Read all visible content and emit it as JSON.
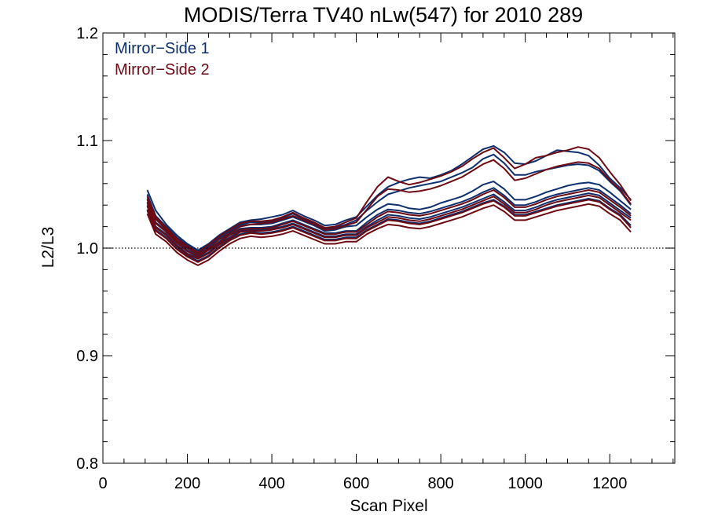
{
  "chart_data": {
    "type": "line",
    "title": "MODIS/Terra TV40 nLw(547) for 2010 289",
    "xlabel": "Scan Pixel",
    "ylabel": "L2/L3",
    "xlim": [
      0,
      1354
    ],
    "ylim": [
      0.8,
      1.2
    ],
    "x_ticks": [
      0,
      200,
      400,
      600,
      800,
      1000,
      1200
    ],
    "x_tick_labels": [
      "0",
      "200",
      "400",
      "600",
      "800",
      "1000",
      "1200"
    ],
    "y_ticks": [
      0.8,
      0.9,
      1.0,
      1.1,
      1.2
    ],
    "y_tick_labels": [
      "0.8",
      "0.9",
      "1.0",
      "1.1",
      "1.2"
    ],
    "reference_line": {
      "y": 1.0,
      "style": "dotted"
    },
    "grid": false,
    "legend_position": "top-left",
    "legend": [
      {
        "label": "Mirror−Side 1",
        "color": "#0d2f6e"
      },
      {
        "label": "Mirror−Side 2",
        "color": "#6e0a12"
      }
    ],
    "x": [
      105,
      125,
      150,
      175,
      200,
      225,
      250,
      275,
      300,
      325,
      350,
      375,
      400,
      425,
      450,
      475,
      500,
      525,
      550,
      575,
      600,
      625,
      650,
      675,
      700,
      725,
      750,
      775,
      800,
      825,
      850,
      875,
      900,
      925,
      950,
      975,
      1000,
      1025,
      1050,
      1075,
      1100,
      1125,
      1150,
      1175,
      1200,
      1225,
      1250
    ],
    "series": [
      {
        "mirror_side": 1,
        "values": [
          1.054,
          1.035,
          1.022,
          1.012,
          1.004,
          0.998,
          1.004,
          1.012,
          1.018,
          1.024,
          1.026,
          1.027,
          1.029,
          1.031,
          1.035,
          1.03,
          1.026,
          1.021,
          1.022,
          1.026,
          1.029,
          1.039,
          1.049,
          1.057,
          1.061,
          1.064,
          1.066,
          1.065,
          1.068,
          1.072,
          1.078,
          1.085,
          1.092,
          1.095,
          1.089,
          1.079,
          1.078,
          1.081,
          1.086,
          1.091,
          1.09,
          1.089,
          1.086,
          1.077,
          1.065,
          1.056,
          1.045
        ]
      },
      {
        "mirror_side": 1,
        "values": [
          1.05,
          1.03,
          1.02,
          1.01,
          1.003,
          0.997,
          1.002,
          1.01,
          1.016,
          1.022,
          1.024,
          1.024,
          1.025,
          1.028,
          1.032,
          1.027,
          1.023,
          1.018,
          1.019,
          1.022,
          1.026,
          1.035,
          1.043,
          1.05,
          1.053,
          1.056,
          1.058,
          1.06,
          1.062,
          1.066,
          1.07,
          1.075,
          1.083,
          1.087,
          1.079,
          1.068,
          1.068,
          1.071,
          1.073,
          1.075,
          1.077,
          1.078,
          1.077,
          1.072,
          1.062,
          1.053,
          1.04
        ]
      },
      {
        "mirror_side": 1,
        "values": [
          1.046,
          1.028,
          1.018,
          1.009,
          1.001,
          0.995,
          1.001,
          1.009,
          1.015,
          1.021,
          1.022,
          1.022,
          1.023,
          1.026,
          1.029,
          1.025,
          1.021,
          1.016,
          1.017,
          1.02,
          1.021,
          1.029,
          1.036,
          1.041,
          1.04,
          1.037,
          1.036,
          1.038,
          1.042,
          1.045,
          1.048,
          1.053,
          1.059,
          1.062,
          1.055,
          1.045,
          1.045,
          1.048,
          1.052,
          1.055,
          1.058,
          1.06,
          1.061,
          1.059,
          1.052,
          1.044,
          1.036
        ]
      },
      {
        "mirror_side": 1,
        "values": [
          1.043,
          1.024,
          1.016,
          1.006,
          0.998,
          0.993,
          0.999,
          1.006,
          1.013,
          1.018,
          1.019,
          1.019,
          1.02,
          1.023,
          1.026,
          1.022,
          1.018,
          1.014,
          1.014,
          1.016,
          1.016,
          1.024,
          1.031,
          1.036,
          1.035,
          1.033,
          1.032,
          1.034,
          1.037,
          1.04,
          1.043,
          1.047,
          1.052,
          1.056,
          1.049,
          1.04,
          1.04,
          1.043,
          1.047,
          1.05,
          1.052,
          1.054,
          1.056,
          1.054,
          1.047,
          1.04,
          1.032
        ]
      },
      {
        "mirror_side": 1,
        "values": [
          1.04,
          1.02,
          1.013,
          1.003,
          0.995,
          0.991,
          0.996,
          1.004,
          1.01,
          1.016,
          1.017,
          1.017,
          1.018,
          1.02,
          1.023,
          1.019,
          1.015,
          1.011,
          1.011,
          1.013,
          1.013,
          1.02,
          1.026,
          1.031,
          1.03,
          1.028,
          1.027,
          1.029,
          1.032,
          1.035,
          1.038,
          1.042,
          1.046,
          1.05,
          1.043,
          1.035,
          1.035,
          1.038,
          1.042,
          1.045,
          1.047,
          1.049,
          1.051,
          1.049,
          1.042,
          1.035,
          1.028
        ]
      },
      {
        "mirror_side": 1,
        "values": [
          1.036,
          1.017,
          1.01,
          1.0,
          0.993,
          0.988,
          0.993,
          1.001,
          1.008,
          1.013,
          1.015,
          1.014,
          1.015,
          1.017,
          1.02,
          1.016,
          1.012,
          1.008,
          1.008,
          1.01,
          1.01,
          1.017,
          1.022,
          1.027,
          1.026,
          1.024,
          1.023,
          1.025,
          1.028,
          1.031,
          1.034,
          1.038,
          1.042,
          1.045,
          1.039,
          1.031,
          1.031,
          1.034,
          1.037,
          1.04,
          1.042,
          1.044,
          1.046,
          1.044,
          1.037,
          1.031,
          1.021
        ]
      },
      {
        "mirror_side": 2,
        "values": [
          1.048,
          1.029,
          1.019,
          1.009,
          1.002,
          0.996,
          1.003,
          1.011,
          1.017,
          1.023,
          1.025,
          1.025,
          1.026,
          1.029,
          1.033,
          1.028,
          1.024,
          1.019,
          1.02,
          1.024,
          1.028,
          1.043,
          1.057,
          1.066,
          1.062,
          1.059,
          1.061,
          1.064,
          1.067,
          1.071,
          1.076,
          1.083,
          1.089,
          1.093,
          1.084,
          1.074,
          1.078,
          1.084,
          1.086,
          1.089,
          1.091,
          1.094,
          1.092,
          1.084,
          1.071,
          1.059,
          1.044
        ]
      },
      {
        "mirror_side": 2,
        "values": [
          1.045,
          1.027,
          1.017,
          1.007,
          1.0,
          0.994,
          1.0,
          1.008,
          1.014,
          1.02,
          1.022,
          1.023,
          1.024,
          1.027,
          1.03,
          1.026,
          1.022,
          1.017,
          1.018,
          1.021,
          1.024,
          1.036,
          1.048,
          1.055,
          1.054,
          1.052,
          1.053,
          1.055,
          1.058,
          1.062,
          1.066,
          1.072,
          1.078,
          1.082,
          1.074,
          1.063,
          1.065,
          1.069,
          1.073,
          1.076,
          1.078,
          1.08,
          1.079,
          1.074,
          1.063,
          1.054,
          1.041
        ]
      },
      {
        "mirror_side": 2,
        "values": [
          1.042,
          1.023,
          1.015,
          1.005,
          0.997,
          0.992,
          0.998,
          1.005,
          1.012,
          1.017,
          1.018,
          1.018,
          1.019,
          1.022,
          1.025,
          1.021,
          1.017,
          1.013,
          1.013,
          1.015,
          1.015,
          1.022,
          1.029,
          1.034,
          1.033,
          1.031,
          1.03,
          1.032,
          1.035,
          1.038,
          1.041,
          1.045,
          1.05,
          1.054,
          1.047,
          1.038,
          1.038,
          1.041,
          1.045,
          1.048,
          1.05,
          1.052,
          1.054,
          1.052,
          1.045,
          1.038,
          1.03
        ]
      },
      {
        "mirror_side": 2,
        "values": [
          1.039,
          1.019,
          1.012,
          1.002,
          0.994,
          0.99,
          0.995,
          1.003,
          1.009,
          1.015,
          1.016,
          1.016,
          1.017,
          1.019,
          1.022,
          1.018,
          1.014,
          1.01,
          1.01,
          1.012,
          1.012,
          1.019,
          1.024,
          1.029,
          1.028,
          1.026,
          1.025,
          1.027,
          1.03,
          1.033,
          1.036,
          1.04,
          1.044,
          1.048,
          1.041,
          1.033,
          1.033,
          1.036,
          1.04,
          1.043,
          1.045,
          1.047,
          1.049,
          1.047,
          1.04,
          1.033,
          1.026
        ]
      },
      {
        "mirror_side": 2,
        "values": [
          1.035,
          1.016,
          1.009,
          0.999,
          0.992,
          0.987,
          0.992,
          1.0,
          1.007,
          1.012,
          1.014,
          1.013,
          1.014,
          1.016,
          1.019,
          1.015,
          1.011,
          1.007,
          1.007,
          1.009,
          1.009,
          1.016,
          1.021,
          1.026,
          1.025,
          1.023,
          1.022,
          1.024,
          1.027,
          1.03,
          1.033,
          1.037,
          1.041,
          1.044,
          1.038,
          1.03,
          1.03,
          1.033,
          1.036,
          1.039,
          1.041,
          1.043,
          1.045,
          1.043,
          1.036,
          1.03,
          1.019
        ]
      },
      {
        "mirror_side": 2,
        "values": [
          1.032,
          1.013,
          1.006,
          0.996,
          0.989,
          0.984,
          0.989,
          0.997,
          1.004,
          1.009,
          1.011,
          1.01,
          1.011,
          1.013,
          1.016,
          1.012,
          1.008,
          1.004,
          1.004,
          1.006,
          1.006,
          1.013,
          1.018,
          1.022,
          1.021,
          1.019,
          1.018,
          1.02,
          1.023,
          1.026,
          1.029,
          1.033,
          1.037,
          1.04,
          1.034,
          1.026,
          1.026,
          1.029,
          1.032,
          1.035,
          1.037,
          1.039,
          1.041,
          1.039,
          1.032,
          1.026,
          1.015
        ]
      }
    ]
  }
}
